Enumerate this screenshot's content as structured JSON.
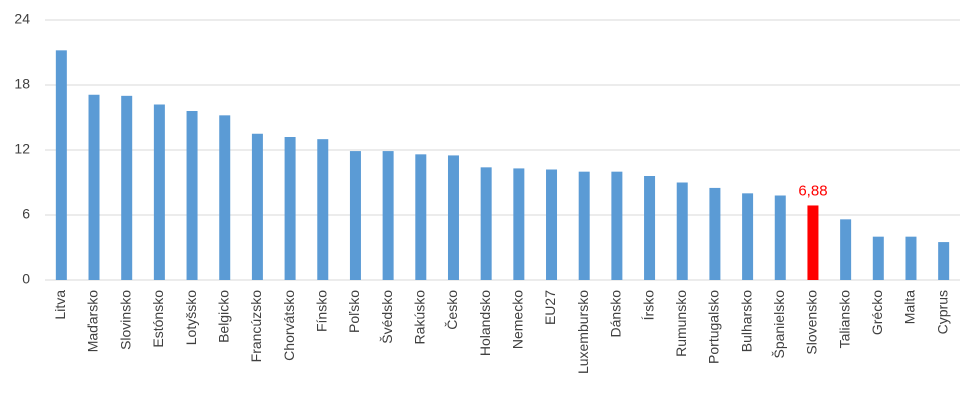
{
  "chart_data": {
    "type": "bar",
    "categories": [
      "Litva",
      "Maďarsko",
      "Slovinsko",
      "Estónsko",
      "Lotyšsko",
      "Belgicko",
      "Francúzsko",
      "Chorvátsko",
      "Fínsko",
      "Poľsko",
      "Švédsko",
      "Rakúsko",
      "Česko",
      "Holandsko",
      "Nemecko",
      "EU27",
      "Luxembursko",
      "Dánsko",
      "Írsko",
      "Rumunsko",
      "Portugalsko",
      "Bulharsko",
      "Španielsko",
      "Slovensko",
      "Taliansko",
      "Grécko",
      "Malta",
      "Cyprus"
    ],
    "values": [
      21.2,
      17.1,
      17.0,
      16.2,
      15.6,
      15.2,
      13.5,
      13.2,
      13.0,
      11.9,
      11.9,
      11.6,
      11.5,
      10.4,
      10.3,
      10.2,
      10.0,
      10.0,
      9.6,
      9.0,
      8.5,
      8.0,
      7.8,
      6.88,
      5.6,
      4.0,
      4.0,
      3.5
    ],
    "value_labels": [
      null,
      null,
      null,
      null,
      null,
      null,
      null,
      null,
      null,
      null,
      null,
      null,
      null,
      null,
      null,
      null,
      null,
      null,
      null,
      null,
      null,
      null,
      null,
      "6,88",
      null,
      null,
      null,
      null
    ],
    "colors": [
      "#5b9bd5",
      "#5b9bd5",
      "#5b9bd5",
      "#5b9bd5",
      "#5b9bd5",
      "#5b9bd5",
      "#5b9bd5",
      "#5b9bd5",
      "#5b9bd5",
      "#5b9bd5",
      "#5b9bd5",
      "#5b9bd5",
      "#5b9bd5",
      "#5b9bd5",
      "#5b9bd5",
      "#5b9bd5",
      "#5b9bd5",
      "#5b9bd5",
      "#5b9bd5",
      "#5b9bd5",
      "#5b9bd5",
      "#5b9bd5",
      "#5b9bd5",
      "#ff0000",
      "#5b9bd5",
      "#5b9bd5",
      "#5b9bd5",
      "#5b9bd5"
    ],
    "ylim": [
      0,
      24
    ],
    "yticks": [
      0,
      6,
      12,
      18,
      24
    ],
    "grid": true
  }
}
